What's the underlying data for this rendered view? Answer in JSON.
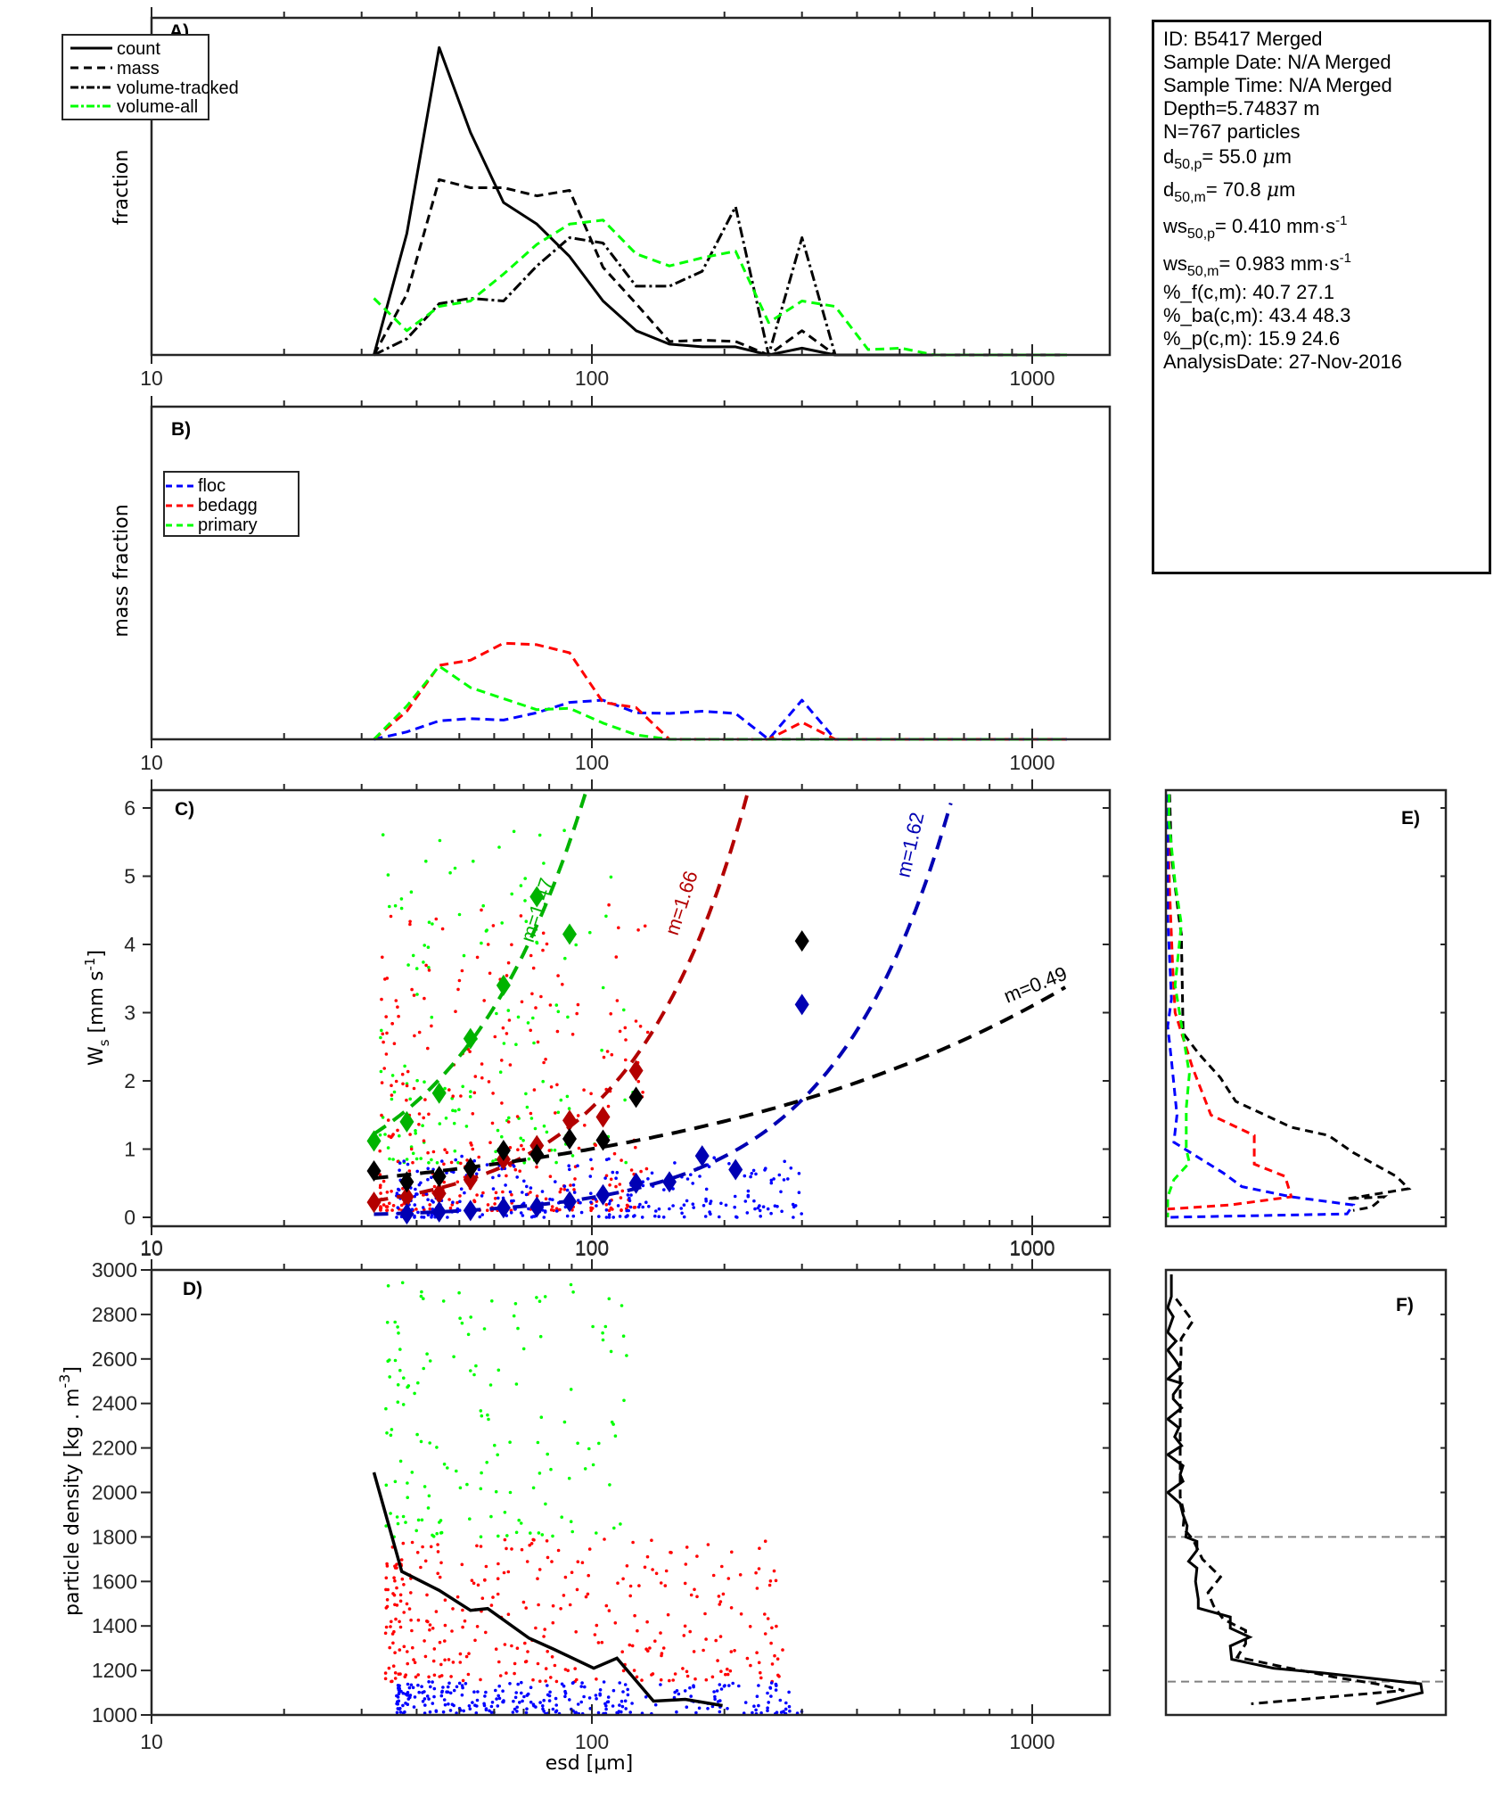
{
  "info_box": {
    "id_line": "ID: B5417 Merged",
    "sample_date": "Sample Date: N/A Merged",
    "sample_time": "Sample Time: N/A Merged",
    "depth": "Depth=5.74837 m",
    "n_particles": "N=767 particles",
    "d50p": {
      "base": "d",
      "sub": "50,p",
      "value": "= 55.0 ",
      "unit_mu": "μ",
      "unit": "m"
    },
    "d50m": {
      "base": "d",
      "sub": "50,m",
      "value": "= 70.8 ",
      "unit_mu": "μ",
      "unit": "m"
    },
    "ws50p": {
      "base": "ws",
      "sub": "50,p",
      "value": "= 0.410 mm·s",
      "sup": "-1"
    },
    "ws50m": {
      "base": "ws",
      "sub": "50,m",
      "value": "= 0.983 mm·s",
      "sup": "-1"
    },
    "pct_f": "%_f(c,m): 40.7 27.1",
    "pct_ba": "%_ba(c,m): 43.4 48.3",
    "pct_p": "%_p(c,m): 15.9 24.6",
    "analysis_date": "AnalysisDate: 27-Nov-2016"
  },
  "colors": {
    "floc": "#0000ff",
    "bedagg": "#ff0000",
    "primary": "#00ff00",
    "fit_floc": "#0000b3",
    "fit_bedagg": "#b30000",
    "fit_primary": "#00b300",
    "black": "#000000",
    "ref_line": "#808080",
    "axis": "#262626"
  },
  "chart_data": [
    {
      "panel": "A",
      "label": "A)",
      "type": "line",
      "xscale": "log",
      "xlim": [
        10,
        1500
      ],
      "ylim": [
        0,
        0.25
      ],
      "xticks": [
        10,
        100,
        1000
      ],
      "xticklabels": [
        "10",
        "100",
        "1000"
      ],
      "xlabel": "",
      "ylabel": "fraction",
      "legend": {
        "position": "top-left",
        "entries": [
          "count",
          "mass",
          "volume-tracked",
          "volume-all"
        ]
      },
      "x": [
        32,
        38,
        45,
        53,
        63,
        75,
        89,
        106,
        126,
        150,
        178,
        212,
        252,
        300,
        357,
        424,
        504,
        600,
        713,
        848,
        1008,
        1199
      ],
      "series": [
        {
          "name": "count",
          "style": "solid",
          "color": "#000000",
          "values": [
            0,
            0.09,
            0.228,
            0.165,
            0.113,
            0.097,
            0.073,
            0.04,
            0.018,
            0.008,
            0.006,
            0.006,
            0.0,
            0.005,
            0.0,
            0,
            0,
            0,
            0,
            0,
            0,
            0
          ]
        },
        {
          "name": "mass",
          "style": "dashed",
          "color": "#000000",
          "values": [
            0,
            0.045,
            0.13,
            0.124,
            0.124,
            0.118,
            0.122,
            0.065,
            0.038,
            0.01,
            0.011,
            0.01,
            0.0,
            0.018,
            0.0,
            0,
            0,
            0,
            0,
            0,
            0,
            0
          ]
        },
        {
          "name": "volume-tracked",
          "style": "dashdot",
          "color": "#000000",
          "values": [
            0,
            0.012,
            0.038,
            0.042,
            0.04,
            0.066,
            0.087,
            0.083,
            0.051,
            0.051,
            0.062,
            0.11,
            0.0,
            0.087,
            0.0,
            0,
            0,
            0,
            0,
            0,
            0,
            0
          ]
        },
        {
          "name": "volume-all",
          "style": "dashed",
          "color": "#00ff00",
          "values": [
            0.042,
            0.018,
            0.036,
            0.04,
            0.06,
            0.082,
            0.097,
            0.1,
            0.075,
            0.066,
            0.072,
            0.077,
            0.024,
            0.04,
            0.036,
            0.004,
            0.005,
            0,
            0,
            0,
            0,
            0
          ]
        }
      ]
    },
    {
      "panel": "B",
      "label": "B)",
      "type": "line",
      "xscale": "log",
      "xlim": [
        10,
        1500
      ],
      "ylim": [
        0,
        0.45
      ],
      "xticks": [
        10,
        100,
        1000
      ],
      "xticklabels": [
        "10",
        "100",
        "1000"
      ],
      "ylabel": "mass fraction",
      "legend": {
        "position": "top-left",
        "entries": [
          "floc",
          "bedagg",
          "primary"
        ]
      },
      "x": [
        32,
        38,
        45,
        53,
        63,
        75,
        89,
        106,
        126,
        150,
        178,
        212,
        252,
        300,
        357,
        424,
        504,
        600,
        713,
        848,
        1008,
        1199
      ],
      "series": [
        {
          "name": "floc",
          "style": "dashed",
          "color": "#0000ff",
          "values": [
            0,
            0.01,
            0.025,
            0.028,
            0.026,
            0.036,
            0.05,
            0.053,
            0.036,
            0.035,
            0.038,
            0.035,
            0.0,
            0.053,
            0.0,
            0,
            0,
            0,
            0,
            0,
            0,
            0
          ]
        },
        {
          "name": "bedagg",
          "style": "dashed",
          "color": "#ff0000",
          "values": [
            0,
            0.038,
            0.1,
            0.107,
            0.13,
            0.128,
            0.117,
            0.05,
            0.043,
            0.0,
            0,
            0,
            0.0,
            0.023,
            0.0,
            0,
            0,
            0,
            0,
            0,
            0,
            0
          ]
        },
        {
          "name": "primary",
          "style": "dashed",
          "color": "#00ff00",
          "values": [
            0,
            0.045,
            0.099,
            0.07,
            0.055,
            0.04,
            0.042,
            0.022,
            0.006,
            0.0,
            0,
            0,
            0,
            0,
            0,
            0,
            0,
            0,
            0,
            0,
            0,
            0
          ]
        }
      ]
    },
    {
      "panel": "C",
      "label": "C)",
      "type": "scatter",
      "xscale": "log",
      "xlim": [
        10,
        1500
      ],
      "ylim": [
        -0.1,
        6.25
      ],
      "xticks": [
        10,
        100,
        1000
      ],
      "xticklabels": [
        "10",
        "100",
        "1000"
      ],
      "yticks": [
        0,
        1,
        2,
        3,
        4,
        5,
        6
      ],
      "yticklabels": [
        "0",
        "1",
        "2",
        "3",
        "4",
        "5",
        "6"
      ],
      "ylabel": "W_s [mm s^-1]",
      "ylabel_parts": {
        "base": "W",
        "sub": "s",
        "unit_open": " [mm s",
        "sup": "-1",
        "unit_close": "]"
      },
      "binned_means": [
        {
          "name": "primary",
          "color": "#00b300",
          "x": [
            32,
            38,
            45,
            53,
            63,
            75,
            89
          ],
          "y": [
            1.12,
            1.4,
            1.82,
            2.62,
            3.4,
            4.7,
            4.15
          ]
        },
        {
          "name": "bedagg",
          "color": "#b30000",
          "x": [
            32,
            38,
            45,
            53,
            63,
            75,
            89,
            106,
            126
          ],
          "y": [
            0.22,
            0.3,
            0.35,
            0.55,
            0.85,
            1.05,
            1.42,
            1.47,
            2.15
          ]
        },
        {
          "name": "all",
          "color": "#000000",
          "x": [
            32,
            38,
            45,
            53,
            63,
            75,
            89,
            106,
            126,
            300
          ],
          "y": [
            0.68,
            0.52,
            0.6,
            0.72,
            0.98,
            0.92,
            1.15,
            1.13,
            1.76,
            4.05
          ]
        },
        {
          "name": "floc",
          "color": "#0000b3",
          "x": [
            38,
            45,
            53,
            63,
            75,
            89,
            106,
            126,
            150,
            178,
            212,
            300
          ],
          "y": [
            0.05,
            0.08,
            0.1,
            0.14,
            0.15,
            0.23,
            0.33,
            0.5,
            0.52,
            0.9,
            0.7,
            3.12
          ]
        }
      ],
      "fits": [
        {
          "name": "primary",
          "label": "m=1.47",
          "exponent": 1.47,
          "coef": 0.0075,
          "color": "#00b300",
          "xrange": [
            32,
            102
          ]
        },
        {
          "name": "bedagg",
          "label": "m=1.66",
          "exponent": 1.66,
          "coef": 0.00077,
          "color": "#b30000",
          "xrange": [
            32,
            235
          ]
        },
        {
          "name": "floc",
          "label": "m=1.62",
          "exponent": 1.62,
          "coef": 0.000167,
          "color": "#0000b3",
          "xrange": [
            32,
            700
          ]
        },
        {
          "name": "all",
          "label": "m=0.49",
          "exponent": 0.49,
          "coef": 0.105,
          "color": "#000000",
          "xrange": [
            32,
            1200
          ]
        }
      ],
      "scatter_groups": [
        {
          "name": "primary",
          "color": "#00ff00",
          "count": 150,
          "xrange": [
            33,
            125
          ],
          "yrange": [
            0.8,
            5.7
          ]
        },
        {
          "name": "bedagg",
          "color": "#ff0000",
          "count": 330,
          "xrange": [
            33,
            135
          ],
          "yrange": [
            0.1,
            4.6
          ]
        },
        {
          "name": "floc",
          "color": "#0000ff",
          "count": 287,
          "xrange": [
            36,
            300
          ],
          "yrange": [
            0.0,
            0.9
          ]
        }
      ]
    },
    {
      "panel": "D",
      "label": "D)",
      "type": "scatter",
      "xscale": "log",
      "xlim": [
        10,
        1500
      ],
      "ylim": [
        1000,
        3000
      ],
      "xticks": [
        10,
        100,
        1000
      ],
      "xticklabels": [
        "10",
        "100",
        "1000"
      ],
      "yticks": [
        1000,
        1200,
        1400,
        1600,
        1800,
        2000,
        2200,
        2400,
        2600,
        2800,
        3000
      ],
      "yticklabels": [
        "1000",
        "1200",
        "1400",
        "1600",
        "1800",
        "2000",
        "2200",
        "2400",
        "2600",
        "2800",
        "3000"
      ],
      "xlabel": "esd [μm]",
      "ylabel": "particle density [kg . m^-3]",
      "ylabel_parts": {
        "base": "particle density [kg . m",
        "sup": "-3",
        "close": "]"
      },
      "median_line": {
        "color": "#000000",
        "x": [
          32,
          37,
          45,
          53,
          58,
          72,
          82,
          101,
          114,
          138,
          163,
          198
        ],
        "y": [
          2090,
          1645,
          1560,
          1470,
          1478,
          1345,
          1295,
          1210,
          1255,
          1062,
          1070,
          1042
        ]
      },
      "scatter_groups": [
        {
          "name": "primary",
          "color": "#00ff00",
          "count": 150,
          "xrange": [
            34,
            125
          ],
          "yrange": [
            1800,
            2950
          ]
        },
        {
          "name": "bedagg",
          "color": "#ff0000",
          "count": 330,
          "xrange": [
            34,
            275
          ],
          "yrange": [
            1150,
            1790
          ]
        },
        {
          "name": "floc",
          "color": "#0000ff",
          "count": 287,
          "xrange": [
            36,
            300
          ],
          "yrange": [
            1005,
            1150
          ]
        }
      ]
    },
    {
      "panel": "E",
      "label": "E)",
      "type": "line",
      "orientation": "vertical-profile",
      "ylim": [
        -0.1,
        6.25
      ],
      "xlim": [
        0,
        0.45
      ],
      "series": [
        {
          "name": "all",
          "style": "dashed",
          "color": "#000000",
          "y": [
            6.2,
            5.3,
            4.4,
            4.15,
            2.7,
            2.4,
            2.05,
            1.7,
            1.32,
            1.2,
            0.95,
            0.6,
            0.42,
            0.27,
            0.3,
            0.15,
            0.1
          ],
          "values": [
            0.003,
            0.006,
            0.018,
            0.022,
            0.025,
            0.05,
            0.085,
            0.11,
            0.2,
            0.26,
            0.3,
            0.37,
            0.39,
            0.29,
            0.35,
            0.33,
            0.3
          ]
        },
        {
          "name": "bedagg",
          "style": "dashed",
          "color": "#ff0000",
          "y": [
            6.2,
            5.8,
            4.8,
            3.7,
            3.0,
            2.2,
            1.5,
            1.2,
            0.78,
            0.6,
            0.3,
            0.18,
            0.12
          ],
          "values": [
            0.0,
            0.0,
            0.003,
            0.008,
            0.012,
            0.04,
            0.07,
            0.14,
            0.14,
            0.19,
            0.2,
            0.1,
            0.0
          ]
        },
        {
          "name": "floc",
          "style": "dashed",
          "color": "#0000ff",
          "y": [
            6.2,
            5.5,
            4.4,
            3.2,
            2.8,
            2.3,
            1.5,
            1.1,
            0.65,
            0.45,
            0.3,
            0.18,
            0.05,
            0.0
          ],
          "values": [
            0.0,
            0.0,
            0.0,
            0.006,
            0.0,
            0.006,
            0.015,
            0.01,
            0.09,
            0.12,
            0.2,
            0.3,
            0.29,
            0.0
          ]
        },
        {
          "name": "primary",
          "style": "dashed",
          "color": "#00ff00",
          "y": [
            6.2,
            5.8,
            4.9,
            4.3,
            3.4,
            2.1,
            1.6,
            1.0,
            0.8,
            0.55,
            0.3,
            0.0
          ],
          "values": [
            0.002,
            0.002,
            0.012,
            0.022,
            0.012,
            0.035,
            0.03,
            0.03,
            0.035,
            0.01,
            0.0,
            0.0
          ]
        }
      ]
    },
    {
      "panel": "F",
      "label": "F)",
      "type": "line",
      "orientation": "vertical-profile",
      "ylim": [
        1000,
        3000
      ],
      "xlim": [
        0,
        0.1
      ],
      "reference_lines_y": [
        1800,
        1150
      ],
      "series": [
        {
          "name": "count",
          "style": "solid",
          "color": "#000000",
          "y": [
            2980,
            2880,
            2830,
            2790,
            2720,
            2680,
            2640,
            2590,
            2560,
            2510,
            2490,
            2440,
            2420,
            2380,
            2330,
            2290,
            2250,
            2210,
            2170,
            2120,
            2080,
            2050,
            2000,
            1950,
            1900,
            1850,
            1800,
            1780,
            1740,
            1690,
            1660,
            1600,
            1520,
            1480,
            1440,
            1390,
            1350,
            1310,
            1250,
            1210,
            1190,
            1140,
            1100,
            1050
          ],
          "values": [
            0.0013,
            0.0013,
            0.0,
            0.002,
            0.0,
            0.003,
            0.0,
            0.003,
            0.0045,
            0.0,
            0.005,
            0.002,
            0.002,
            0.005,
            0.0,
            0.004,
            0.0025,
            0.005,
            0.0,
            0.0055,
            0.0045,
            0.0055,
            0.0,
            0.0045,
            0.0055,
            0.007,
            0.0065,
            0.0105,
            0.0105,
            0.0075,
            0.0105,
            0.01,
            0.011,
            0.011,
            0.0225,
            0.0225,
            0.0295,
            0.0225,
            0.023,
            0.038,
            0.055,
            0.091,
            0.0915,
            0.075
          ]
        },
        {
          "name": "mass",
          "style": "dashed",
          "color": "#000000",
          "y": [
            2870,
            2770,
            2690,
            2620,
            2560,
            2500,
            2420,
            2380,
            2300,
            2200,
            2120,
            2040,
            1980,
            1900,
            1840,
            1790,
            1700,
            1620,
            1550,
            1490,
            1430,
            1380,
            1320,
            1260,
            1220,
            1170,
            1140,
            1110,
            1050
          ],
          "values": [
            0.003,
            0.009,
            0.0048,
            0.0048,
            0.0045,
            0.0045,
            0.0045,
            0.0045,
            0.0045,
            0.0045,
            0.0045,
            0.0045,
            0.0045,
            0.006,
            0.0055,
            0.009,
            0.0125,
            0.019,
            0.0145,
            0.0165,
            0.02,
            0.028,
            0.028,
            0.025,
            0.04,
            0.06,
            0.075,
            0.085,
            0.03
          ]
        }
      ]
    }
  ]
}
